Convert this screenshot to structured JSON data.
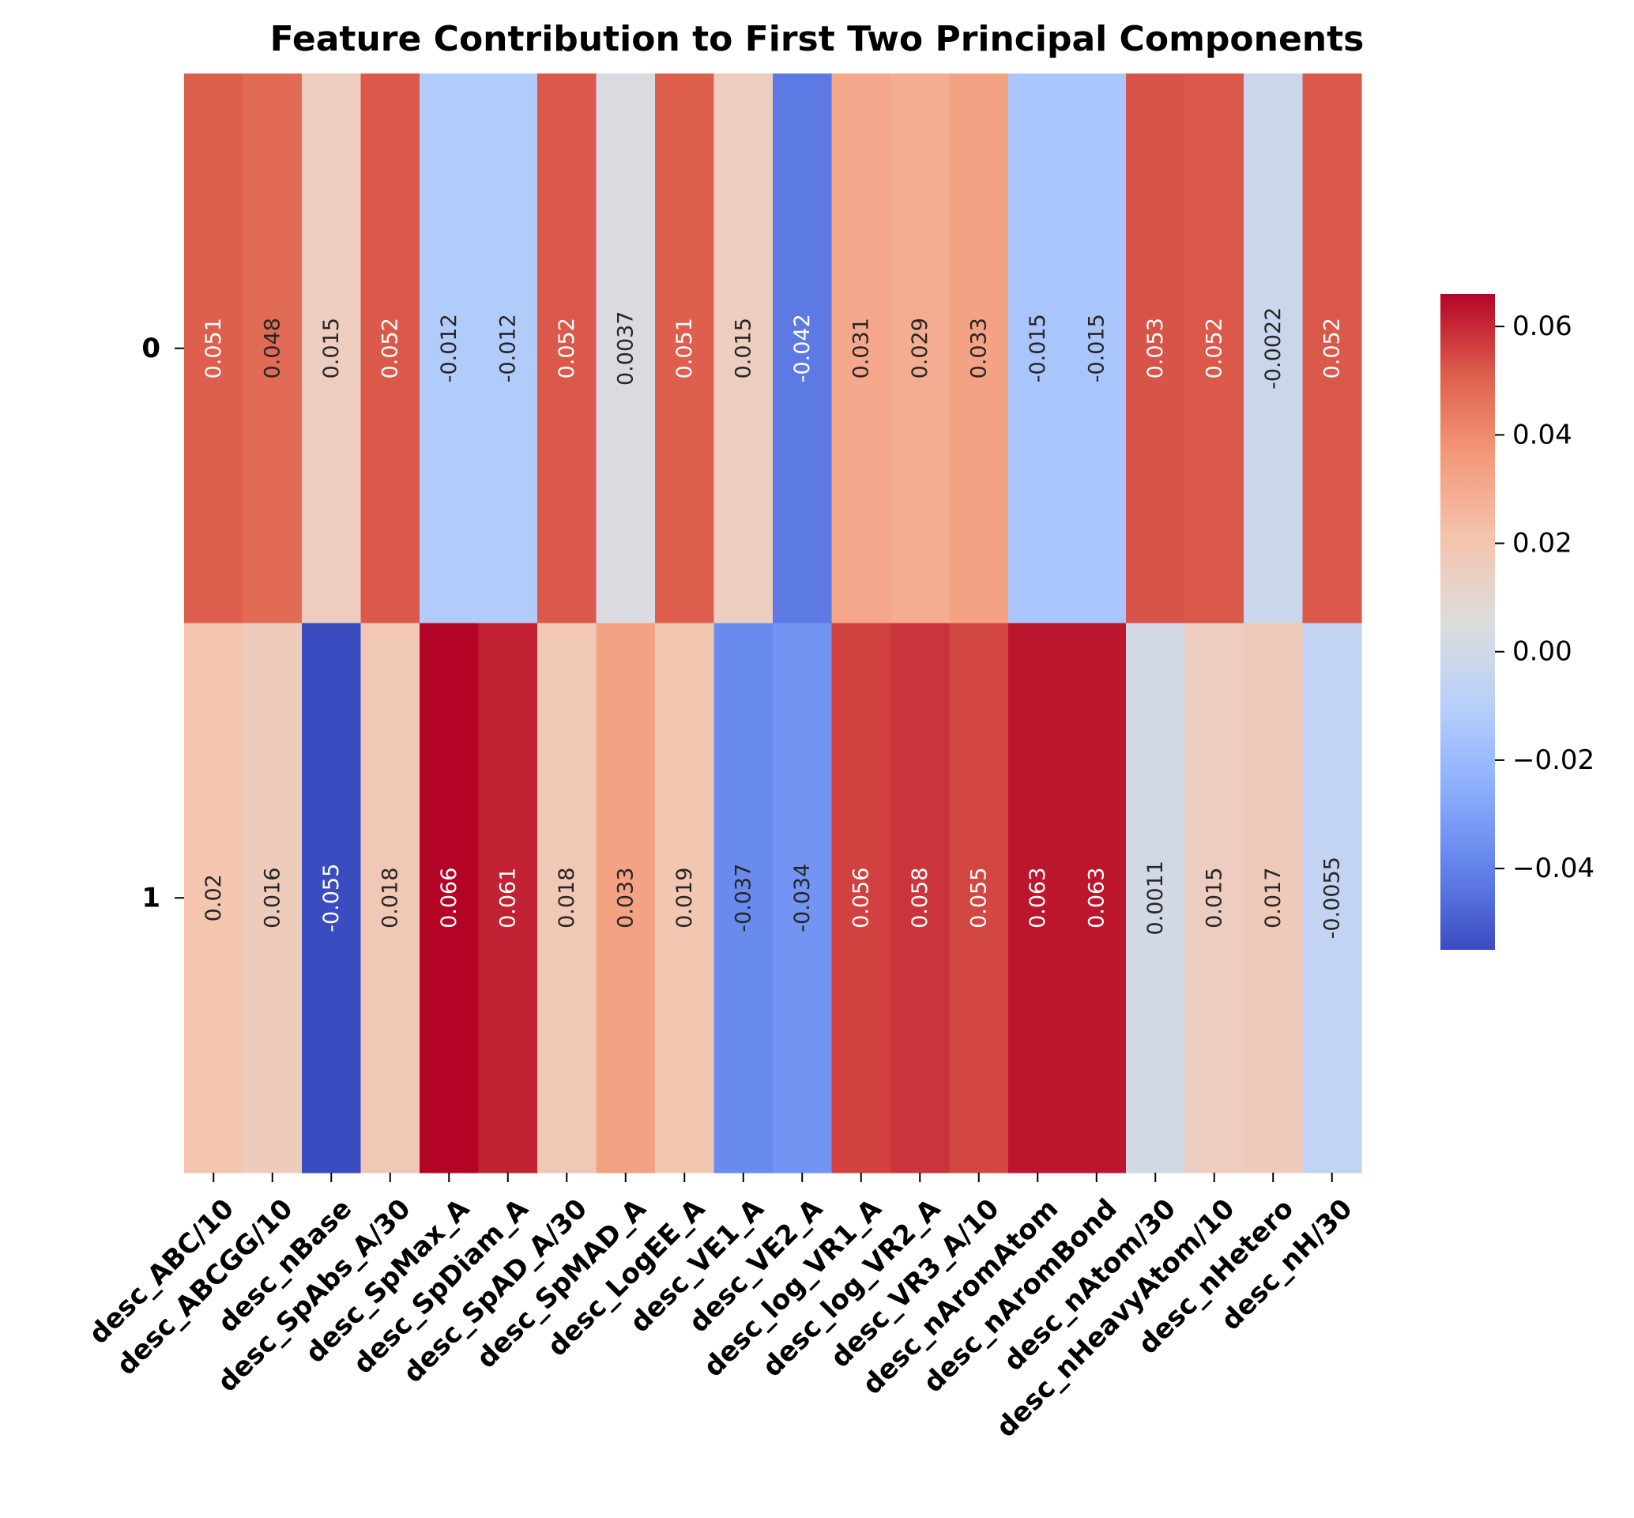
{
  "chart_data": {
    "type": "heatmap",
    "title": "Feature Contribution to First Two Principal Components",
    "row_labels": [
      "0",
      "1"
    ],
    "column_labels": [
      "desc_ABC/10",
      "desc_ABCGG/10",
      "desc_nBase",
      "desc_SpAbs_A/30",
      "desc_SpMax_A",
      "desc_SpDiam_A",
      "desc_SpAD_A/30",
      "desc_SpMAD_A",
      "desc_LogEE_A",
      "desc_VE1_A",
      "desc_VE2_A",
      "desc_log_VR1_A",
      "desc_log_VR2_A",
      "desc_VR3_A/10",
      "desc_nAromAtom",
      "desc_nAromBond",
      "desc_nAtom/30",
      "desc_nHeavyAtom/10",
      "desc_nHetero",
      "desc_nH/30"
    ],
    "values": [
      [
        0.051,
        0.048,
        0.015,
        0.052,
        -0.012,
        -0.012,
        0.052,
        0.0037,
        0.051,
        0.015,
        -0.042,
        0.031,
        0.029,
        0.033,
        -0.015,
        -0.015,
        0.053,
        0.052,
        -0.0022,
        0.052
      ],
      [
        0.02,
        0.016,
        -0.055,
        0.018,
        0.066,
        0.061,
        0.018,
        0.033,
        0.019,
        -0.037,
        -0.034,
        0.056,
        0.058,
        0.055,
        0.063,
        0.063,
        0.0011,
        0.015,
        0.017,
        -0.0055
      ]
    ],
    "annotations": [
      [
        "0.051",
        "0.048",
        "0.015",
        "0.052",
        "-0.012",
        "-0.012",
        "0.052",
        "0.0037",
        "0.051",
        "0.015",
        "-0.042",
        "0.031",
        "0.029",
        "0.033",
        "-0.015",
        "-0.015",
        "0.053",
        "0.052",
        "-0.0022",
        "0.052"
      ],
      [
        "0.02",
        "0.016",
        "-0.055",
        "0.018",
        "0.066",
        "0.061",
        "0.018",
        "0.033",
        "0.019",
        "-0.037",
        "-0.034",
        "0.056",
        "0.058",
        "0.055",
        "0.063",
        "0.063",
        "0.0011",
        "0.015",
        "0.017",
        "-0.0055"
      ]
    ],
    "colormap": "coolwarm",
    "vmin": -0.055,
    "vmax": 0.066,
    "colorbar_ticks": [
      -0.04,
      -0.02,
      0.0,
      0.02,
      0.04,
      0.06
    ],
    "colorbar_tick_labels": [
      "−0.04",
      "−0.02",
      "0.00",
      "0.02",
      "0.04",
      "0.06"
    ],
    "annotation_rotation": "vertical",
    "xtick_rotation": "45 degrees"
  }
}
